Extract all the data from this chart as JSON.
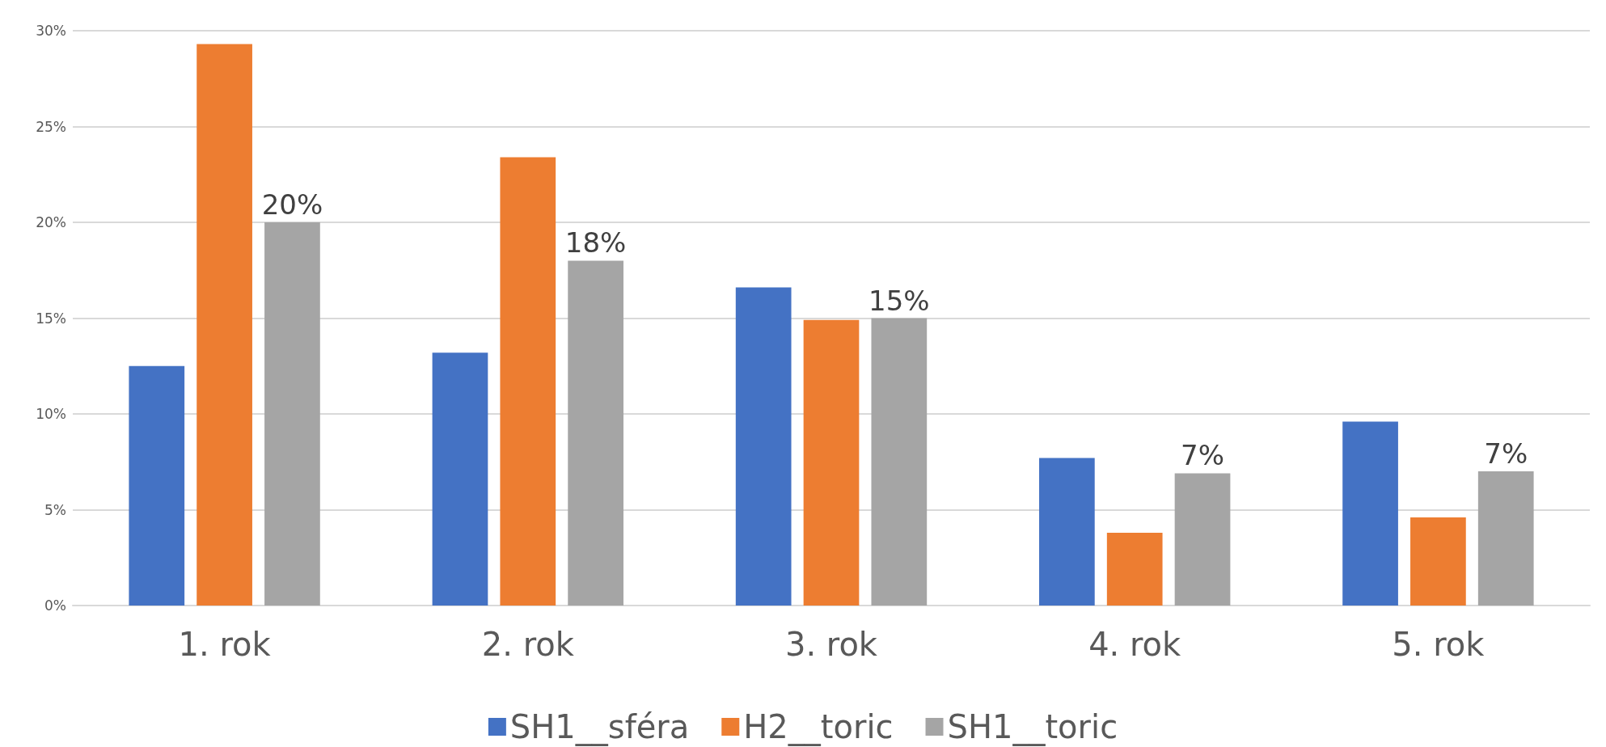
{
  "chart_data": {
    "type": "bar",
    "categories": [
      "1. rok",
      "2. rok",
      "3. rok",
      "4. rok",
      "5. rok"
    ],
    "series": [
      {
        "name": "SH1__sféra",
        "color": "#4472c4",
        "values": [
          12.5,
          13.2,
          16.6,
          7.7,
          9.6
        ]
      },
      {
        "name": "H2__toric",
        "color": "#ed7d31",
        "values": [
          29.3,
          23.4,
          14.9,
          3.8,
          4.6
        ]
      },
      {
        "name": "SH1__toric",
        "color": "#a5a5a5",
        "values": [
          20,
          18,
          15,
          6.9,
          7
        ],
        "value_labels": [
          "20%",
          "18%",
          "15%",
          "7%",
          "7%"
        ]
      }
    ],
    "ylim": [
      0,
      30
    ],
    "yticks": [
      {
        "value": 0,
        "label": "0%"
      },
      {
        "value": 5,
        "label": "5%"
      },
      {
        "value": 10,
        "label": "10%"
      },
      {
        "value": 15,
        "label": "15%"
      },
      {
        "value": 20,
        "label": "20%"
      },
      {
        "value": 25,
        "label": "25%"
      },
      {
        "value": 30,
        "label": "30%"
      }
    ],
    "grid": "y",
    "legend": "bottom"
  }
}
